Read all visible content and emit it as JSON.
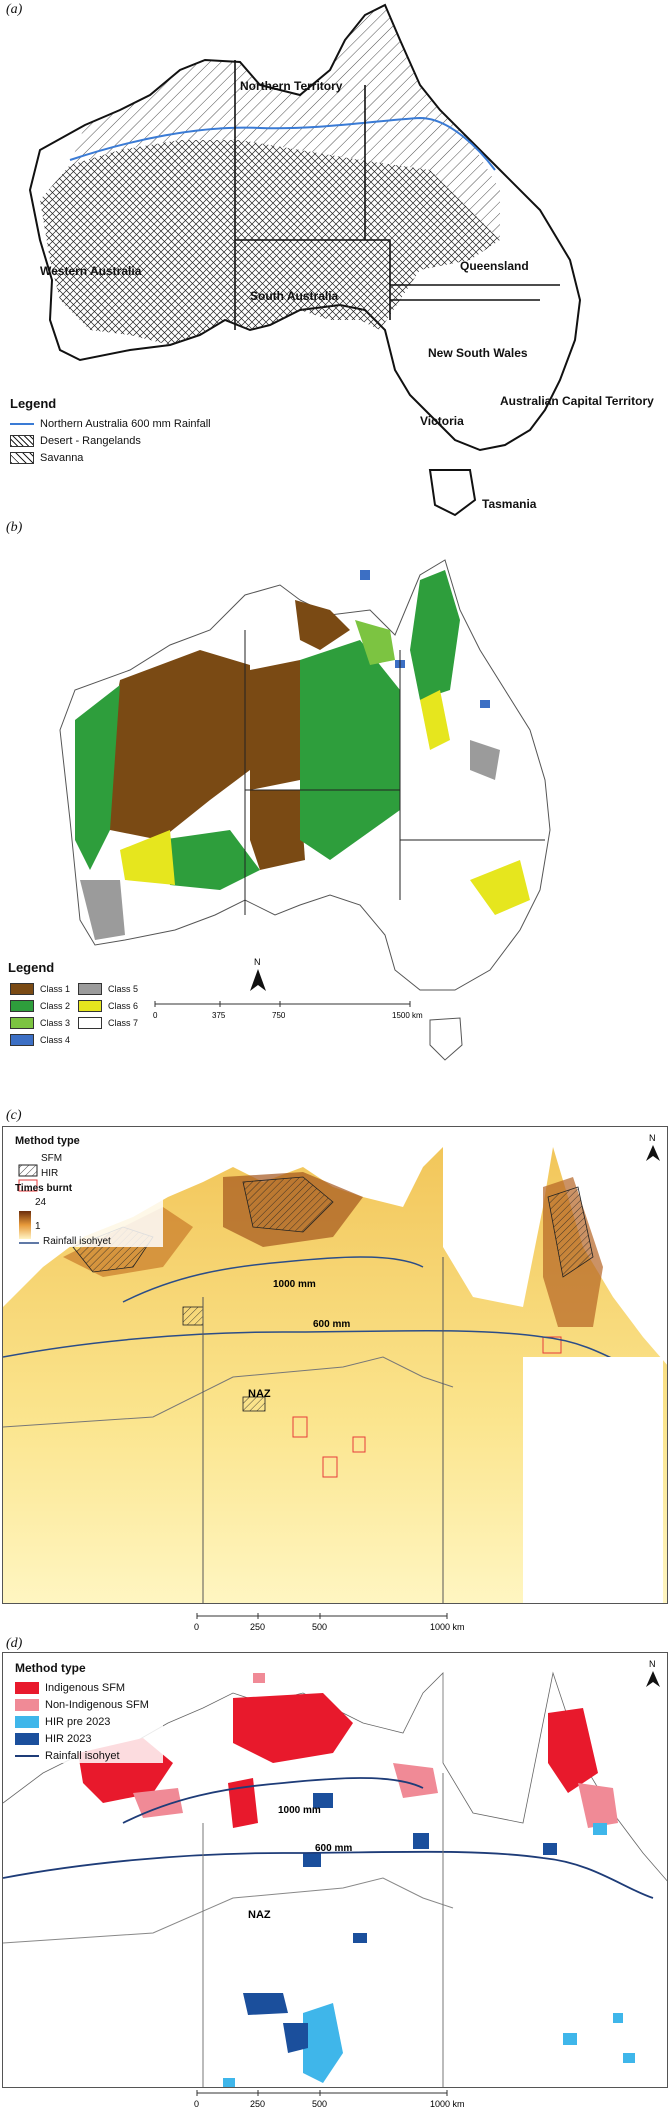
{
  "panel_a": {
    "tag": "(a)",
    "states": [
      "Northern Territory",
      "Western Australia",
      "South Australia",
      "Queensland",
      "New South Wales",
      "Australian Capital Territory",
      "Victoria",
      "Tasmania"
    ],
    "legend_title": "Legend",
    "legend": [
      "Northern Australia 600 mm Rainfall",
      "Desert - Rangelands",
      "Savanna"
    ]
  },
  "panel_b": {
    "tag": "(b)",
    "legend_title": "Legend",
    "classes": [
      {
        "label": "Class 1",
        "color": "#7a4a14"
      },
      {
        "label": "Class 2",
        "color": "#2e9e3c"
      },
      {
        "label": "Class 3",
        "color": "#7cc441"
      },
      {
        "label": "Class 4",
        "color": "#3c6fc4"
      },
      {
        "label": "Class 5",
        "color": "#9b9b9b"
      },
      {
        "label": "Class 6",
        "color": "#e6e61e"
      },
      {
        "label": "Class 7",
        "color": "#ffffff"
      }
    ],
    "north": "N",
    "scale": [
      "0",
      "375",
      "750",
      "1500 km"
    ]
  },
  "panel_c": {
    "tag": "(c)",
    "legend_title": "Method type",
    "methods": [
      "SFM",
      "HIR"
    ],
    "times_title": "Times burnt",
    "times_max": "24",
    "times_min": "1",
    "isohyet": "Rainfall isohyet",
    "iso_1000": "1000 mm",
    "iso_600": "600 mm",
    "naz": "NAZ",
    "north": "N",
    "scale": [
      "0",
      "250",
      "500",
      "1000 km"
    ]
  },
  "panel_d": {
    "tag": "(d)",
    "legend_title": "Method type",
    "methods": [
      {
        "label": "Indigenous SFM",
        "color": "#e8192c"
      },
      {
        "label": "Non-Indigenous SFM",
        "color": "#f08a96"
      },
      {
        "label": "HIR pre 2023",
        "color": "#3fb6ea"
      },
      {
        "label": "HIR 2023",
        "color": "#1b4f9c"
      }
    ],
    "isohyet": "Rainfall isohyet",
    "iso_1000": "1000 mm",
    "iso_600": "600 mm",
    "naz": "NAZ",
    "north": "N",
    "scale": [
      "0",
      "250",
      "500",
      "1000 km"
    ]
  }
}
